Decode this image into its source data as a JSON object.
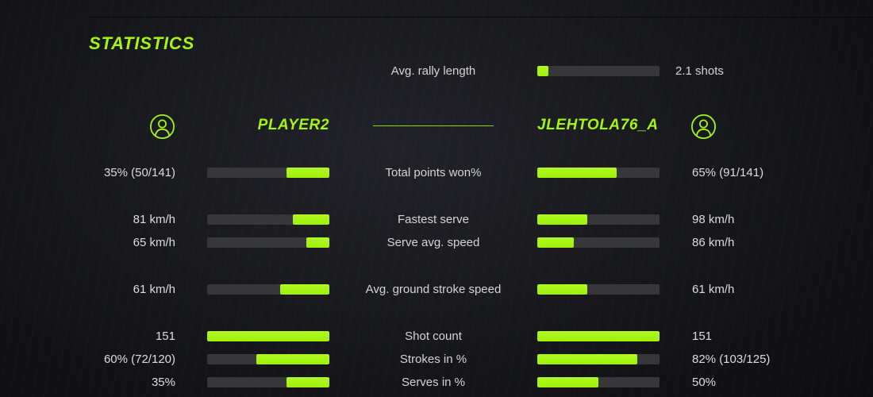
{
  "title": "STATISTICS",
  "accent_color": "#a5f513",
  "avg_rally": {
    "label": "Avg. rally length",
    "value": "2.1 shots",
    "fill_pct": 9
  },
  "players": {
    "left": {
      "name": "PLAYER2",
      "icon": "person-icon"
    },
    "right": {
      "name": "JLEHTOLA76_A",
      "icon": "person-icon"
    }
  },
  "stats": [
    {
      "label": "Total points won%",
      "left_value": "35% (50/141)",
      "left_pct": 35,
      "right_value": "65% (91/141)",
      "right_pct": 65,
      "group_start": false
    },
    {
      "label": "Fastest serve",
      "left_value": "81 km/h",
      "left_pct": 30,
      "right_value": "98 km/h",
      "right_pct": 41,
      "group_start": true
    },
    {
      "label": "Serve avg. speed",
      "left_value": "65 km/h",
      "left_pct": 19,
      "right_value": "86 km/h",
      "right_pct": 30,
      "group_start": false
    },
    {
      "label": "Avg. ground stroke speed",
      "left_value": "61 km/h",
      "left_pct": 40,
      "right_value": "61 km/h",
      "right_pct": 41,
      "group_start": true
    },
    {
      "label": "Shot count",
      "left_value": "151",
      "left_pct": 100,
      "right_value": "151",
      "right_pct": 100,
      "group_start": true
    },
    {
      "label": "Strokes in %",
      "left_value": "60% (72/120)",
      "left_pct": 60,
      "right_value": "82% (103/125)",
      "right_pct": 82,
      "group_start": false
    },
    {
      "label": "Serves in %",
      "left_value": "35%",
      "left_pct": 35,
      "right_value": "50%",
      "right_pct": 50,
      "group_start": false
    }
  ]
}
